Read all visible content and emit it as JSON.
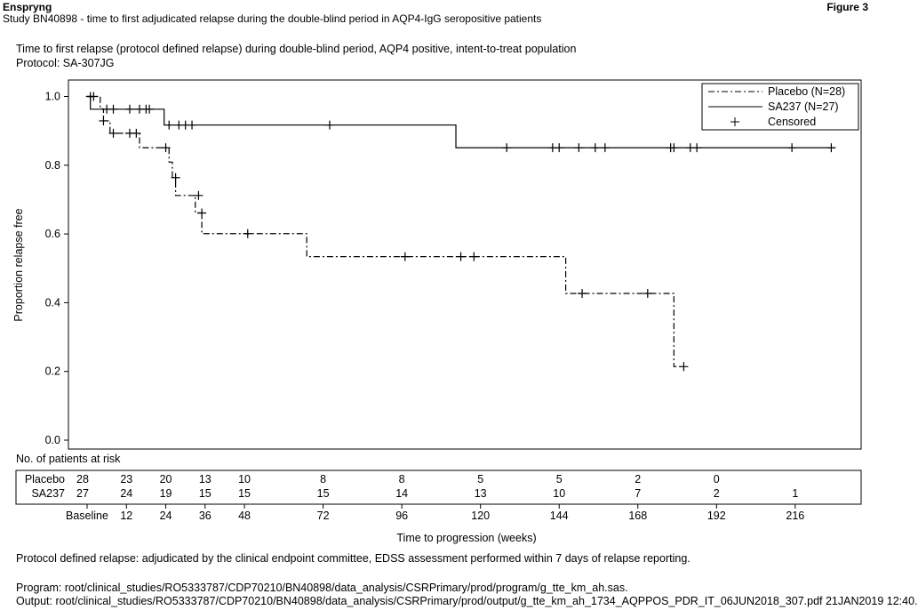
{
  "header": {
    "brand": "Enspryng",
    "figure": "Figure 3",
    "study": "Study BN40898 - time to first adjudicated relapse during the double-blind period in AQP4-IgG seropositive patients"
  },
  "footer": {
    "footnote": "Protocol defined relapse: adjudicated by the clinical endpoint committee, EDSS assessment performed within 7 days of relapse reporting.",
    "program": "Program: root/clinical_studies/RO5333787/CDP70210/BN40898/data_analysis/CSRPrimary/prod/program/g_tte_km_ah.sas.",
    "output": "Output: root/clinical_studies/RO5333787/CDP70210/BN40898/data_analysis/CSRPrimary/prod/output/g_tte_km_ah_1734_AQPPOS_PDR_IT_06JUN2018_307.pdf 21JAN2019 12:40."
  },
  "chart_data": {
    "type": "line",
    "title": "Time to first relapse (protocol defined relapse) during double-blind period, AQP4 positive, intent-to-treat population",
    "subtitle": "Protocol: SA-307JG",
    "xlabel": "Time to progression (weeks)",
    "ylabel": "Proportion relapse free",
    "xlim": [
      0,
      228
    ],
    "ylim": [
      0,
      1.0
    ],
    "yticks": [
      0.0,
      0.2,
      0.4,
      0.6,
      0.8,
      1.0
    ],
    "ytick_labels": [
      "0.0",
      "0.2",
      "0.4",
      "0.6",
      "0.8",
      "1.0"
    ],
    "xticks": [
      0,
      12,
      24,
      36,
      48,
      72,
      96,
      120,
      144,
      168,
      192,
      216
    ],
    "xtick_labels": [
      "Baseline",
      "12",
      "24",
      "36",
      "48",
      "72",
      "96",
      "120",
      "144",
      "168",
      "192",
      "216"
    ],
    "legend_position": "top-right",
    "legend_censored": "Censored",
    "series": [
      {
        "name": "Placebo (N=28)",
        "line_style": "dash-dot",
        "steps": [
          [
            0,
            1.0
          ],
          [
            4,
            0.964
          ],
          [
            5,
            0.929
          ],
          [
            7,
            0.893
          ],
          [
            14,
            0.893
          ],
          [
            16,
            0.851
          ],
          [
            24,
            0.851
          ],
          [
            25,
            0.809
          ],
          [
            26,
            0.764
          ],
          [
            27,
            0.712
          ],
          [
            32,
            0.712
          ],
          [
            33,
            0.661
          ],
          [
            34,
            0.661
          ],
          [
            35,
            0.601
          ],
          [
            66,
            0.601
          ],
          [
            67,
            0.534
          ],
          [
            145,
            0.534
          ],
          [
            146,
            0.427
          ],
          [
            178,
            0.427
          ],
          [
            179,
            0.214
          ],
          [
            182,
            0.214
          ]
        ],
        "censored": [
          [
            1,
            1.0
          ],
          [
            2,
            1.0
          ],
          [
            5,
            0.929
          ],
          [
            8,
            0.893
          ],
          [
            13,
            0.893
          ],
          [
            15,
            0.893
          ],
          [
            24,
            0.851
          ],
          [
            27,
            0.764
          ],
          [
            34,
            0.712
          ],
          [
            35,
            0.661
          ],
          [
            49,
            0.601
          ],
          [
            97,
            0.534
          ],
          [
            114,
            0.534
          ],
          [
            118,
            0.534
          ],
          [
            151,
            0.427
          ],
          [
            171,
            0.427
          ],
          [
            182,
            0.214
          ]
        ]
      },
      {
        "name": "SA237 (N=27)",
        "line_style": "solid",
        "steps": [
          [
            0,
            1.0
          ],
          [
            1,
            0.963
          ],
          [
            23,
            0.963
          ],
          [
            23.5,
            0.917
          ],
          [
            112,
            0.917
          ],
          [
            112.5,
            0.851
          ],
          [
            228,
            0.851
          ]
        ],
        "censored": [
          [
            6,
            0.963
          ],
          [
            8,
            0.963
          ],
          [
            13,
            0.963
          ],
          [
            16,
            0.963
          ],
          [
            18,
            0.963
          ],
          [
            19,
            0.963
          ],
          [
            25,
            0.917
          ],
          [
            28,
            0.917
          ],
          [
            30,
            0.917
          ],
          [
            32,
            0.917
          ],
          [
            74,
            0.917
          ],
          [
            128,
            0.851
          ],
          [
            142,
            0.851
          ],
          [
            144,
            0.851
          ],
          [
            150,
            0.851
          ],
          [
            155,
            0.851
          ],
          [
            158,
            0.851
          ],
          [
            178,
            0.851
          ],
          [
            179,
            0.851
          ],
          [
            184,
            0.851
          ],
          [
            186,
            0.851
          ],
          [
            215,
            0.851
          ],
          [
            227,
            0.851
          ]
        ]
      }
    ],
    "risk_table": {
      "title": "No. of patients at risk",
      "times": [
        0,
        12,
        24,
        36,
        48,
        72,
        96,
        120,
        144,
        168,
        192,
        216
      ],
      "rows": [
        {
          "label": "Placebo",
          "values": [
            "28",
            "23",
            "20",
            "13",
            "10",
            "8",
            "8",
            "5",
            "5",
            "2",
            "0",
            ""
          ]
        },
        {
          "label": "SA237",
          "values": [
            "27",
            "24",
            "19",
            "15",
            "15",
            "15",
            "14",
            "13",
            "10",
            "7",
            "2",
            "1"
          ]
        }
      ]
    }
  }
}
